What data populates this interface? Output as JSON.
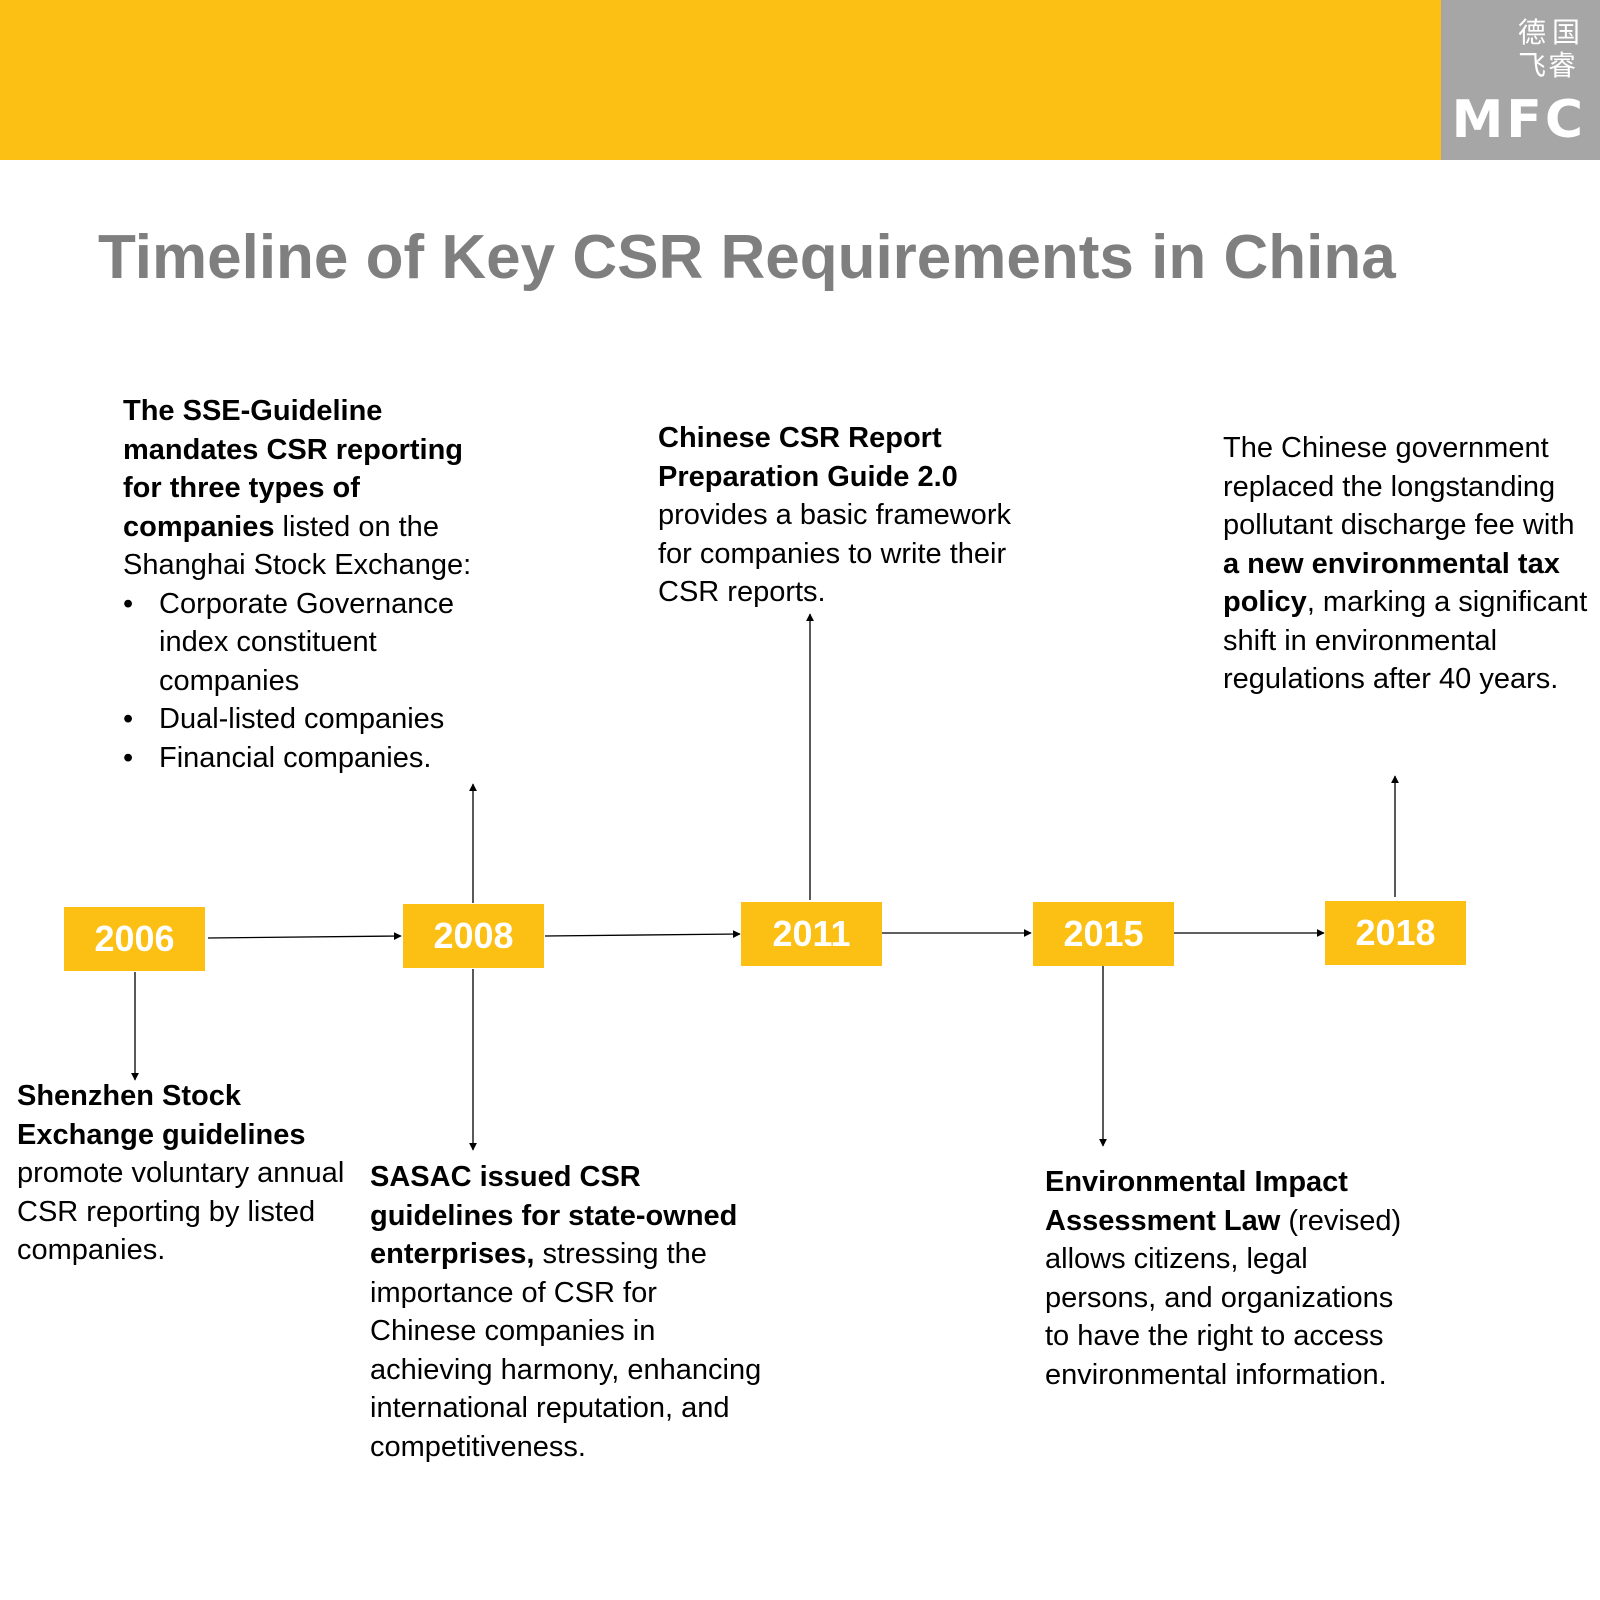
{
  "title": "Timeline of Key CSR Requirements in China",
  "logo": {
    "chinese": "德国飞睿",
    "wordmark": "MFC"
  },
  "colors": {
    "accent": "#FCBF14",
    "logo_bg": "#A6A6A6",
    "title": "#7F7F7F"
  },
  "years": [
    "2006",
    "2008",
    "2011",
    "2015",
    "2018"
  ],
  "events": {
    "e2006": {
      "bold": "Shenzhen Stock Exchange guidelines",
      "text": " promote voluntary annual CSR reporting by listed companies."
    },
    "e2008a": {
      "bold": "The SSE-Guideline mandates CSR reporting for three types of companies",
      "text": " listed on the Shanghai Stock Exchange:",
      "bullets": [
        "Corporate Governance index constituent companies",
        "Dual-listed companies",
        "Financial companies."
      ]
    },
    "e2008b": {
      "bold": "SASAC issued CSR guidelines for state-owned enterprises,",
      "text": " stressing the importance of CSR for Chinese companies in achieving harmony, enhancing international reputation, and competitiveness."
    },
    "e2011": {
      "bold": "Chinese CSR Report Preparation Guide 2.0",
      "text": " provides a basic framework for companies to write their CSR reports."
    },
    "e2015": {
      "bold": "Environmental Impact Assessment Law",
      "text": " (revised) allows citizens, legal persons, and organizations to have the right to access environmental information."
    },
    "e2018": {
      "pre": "The Chinese government replaced the longstanding pollutant discharge fee with ",
      "bold": "a new environmental tax policy",
      "text": ", marking a significant shift in environmental regulations after 40 years."
    }
  }
}
